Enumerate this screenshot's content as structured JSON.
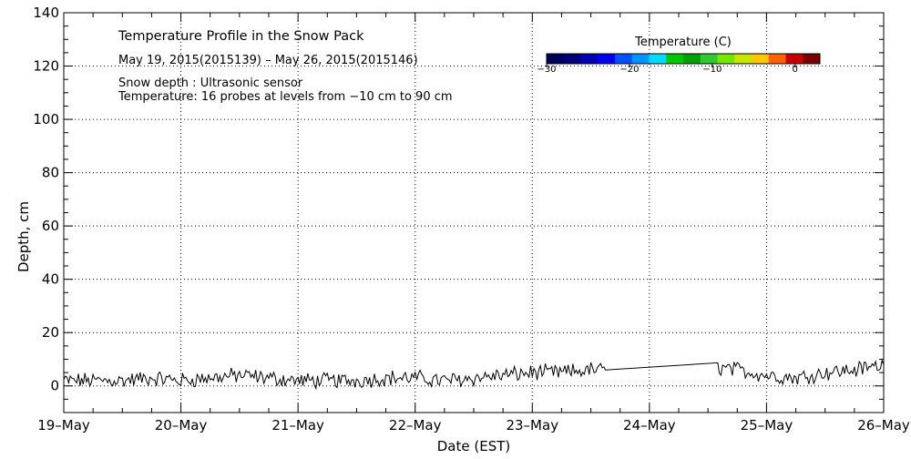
{
  "chart_data": {
    "type": "line",
    "title": "Temperature Profile in the Snow Pack",
    "subtitle": "May 19, 2015(2015139) – May 26, 2015(2015146)",
    "annotations": [
      "Snow depth : Ultrasonic sensor",
      "Temperature: 16 probes at levels from −10 cm to 90 cm"
    ],
    "xlabel": "Date (EST)",
    "ylabel": "Depth, cm",
    "x_ticks": [
      "19–May",
      "20–May",
      "21–May",
      "22–May",
      "23–May",
      "24–May",
      "25–May",
      "26–May"
    ],
    "y_ticks": [
      0,
      20,
      40,
      60,
      80,
      100,
      120,
      140
    ],
    "xlim": [
      "2015-05-19",
      "2015-05-26"
    ],
    "ylim": [
      -10,
      140
    ],
    "grid": true,
    "colorbar": {
      "title": "Temperature (C)",
      "ticks": [
        "−30",
        "−20",
        "−10",
        "0"
      ],
      "range": [
        -30,
        3
      ],
      "colors": [
        "#00005a",
        "#000078",
        "#0000b4",
        "#0000f0",
        "#0050ff",
        "#0096ff",
        "#00dcff",
        "#00c800",
        "#00a000",
        "#32c832",
        "#78e600",
        "#c8e600",
        "#ffc800",
        "#ff6400",
        "#c80000",
        "#780000"
      ]
    },
    "series": [
      {
        "x": [
          "2015-05-19 00:00",
          "2015-05-19 06:00",
          "2015-05-19 12:00",
          "2015-05-19 18:00",
          "2015-05-20 00:00",
          "2015-05-20 06:00",
          "2015-05-20 12:00",
          "2015-05-20 18:00",
          "2015-05-21 00:00",
          "2015-05-21 06:00",
          "2015-05-21 12:00",
          "2015-05-21 18:00",
          "2015-05-22 00:00",
          "2015-05-22 06:00",
          "2015-05-22 12:00",
          "2015-05-22 18:00",
          "2015-05-23 00:00",
          "2015-05-23 06:00",
          "2015-05-23 12:00",
          "2015-05-23 15:00",
          "2015-05-24 14:00",
          "2015-05-24 18:00",
          "2015-05-25 00:00",
          "2015-05-25 06:00",
          "2015-05-25 12:00",
          "2015-05-25 18:00",
          "2015-05-26 00:00"
        ],
        "y": [
          2,
          2,
          2,
          3,
          2,
          3,
          4,
          3,
          2,
          2,
          2,
          3,
          3,
          2,
          3,
          4,
          5,
          5,
          6,
          6,
          7,
          6,
          4,
          3,
          5,
          6,
          8
        ]
      }
    ]
  }
}
